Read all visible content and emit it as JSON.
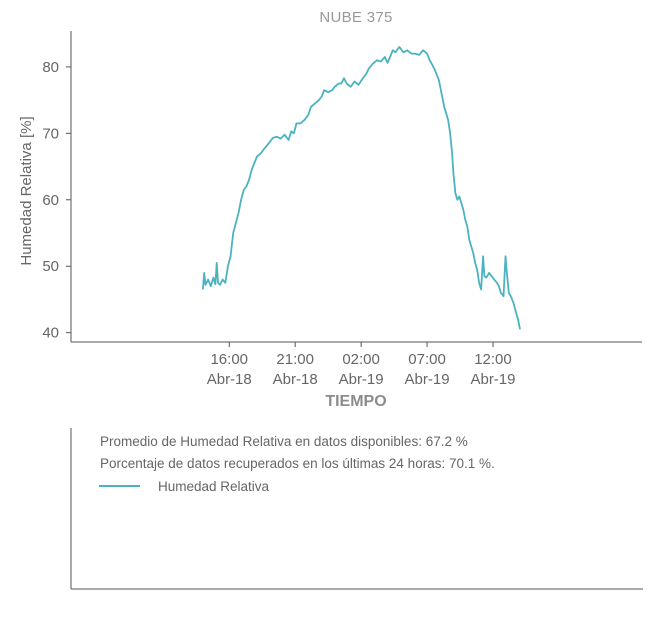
{
  "chart_data": {
    "type": "line",
    "title": "NUBE 375",
    "xlabel": "TIEMPO",
    "ylabel": "Humedad Relativa [%]",
    "ylim": [
      38.6,
      85.4
    ],
    "y_ticks": [
      40,
      50,
      60,
      70,
      80
    ],
    "x_range_hours": [
      -12.0,
      31.3
    ],
    "x_ticks": [
      {
        "hours": 0,
        "time": "16:00",
        "date": "Abr-18"
      },
      {
        "hours": 5,
        "time": "21:00",
        "date": "Abr-18"
      },
      {
        "hours": 10,
        "time": "02:00",
        "date": "Abr-19"
      },
      {
        "hours": 15,
        "time": "07:00",
        "date": "Abr-19"
      },
      {
        "hours": 20,
        "time": "12:00",
        "date": "Abr-19"
      }
    ],
    "grid": false,
    "series": [
      {
        "name": "Humedad Relativa",
        "color": "#4bb3c0",
        "points": [
          [
            -2.0,
            46.5
          ],
          [
            -1.9,
            49.0
          ],
          [
            -1.8,
            47.2
          ],
          [
            -1.6,
            48.0
          ],
          [
            -1.4,
            47.0
          ],
          [
            -1.2,
            48.3
          ],
          [
            -1.05,
            47.3
          ],
          [
            -0.95,
            50.5
          ],
          [
            -0.85,
            47.5
          ],
          [
            -0.7,
            47.2
          ],
          [
            -0.5,
            48.0
          ],
          [
            -0.3,
            47.5
          ],
          [
            -0.1,
            50.0
          ],
          [
            0.1,
            51.5
          ],
          [
            0.3,
            55.0
          ],
          [
            0.5,
            56.5
          ],
          [
            0.7,
            58.0
          ],
          [
            0.9,
            60.0
          ],
          [
            1.1,
            61.5
          ],
          [
            1.3,
            62.0
          ],
          [
            1.5,
            63.0
          ],
          [
            1.7,
            64.5
          ],
          [
            1.9,
            65.5
          ],
          [
            2.1,
            66.5
          ],
          [
            2.4,
            67.0
          ],
          [
            2.7,
            67.8
          ],
          [
            3.0,
            68.5
          ],
          [
            3.3,
            69.3
          ],
          [
            3.6,
            69.5
          ],
          [
            3.9,
            69.2
          ],
          [
            4.2,
            69.8
          ],
          [
            4.5,
            69.0
          ],
          [
            4.7,
            70.3
          ],
          [
            4.9,
            70.0
          ],
          [
            5.1,
            71.5
          ],
          [
            5.4,
            71.5
          ],
          [
            5.7,
            72.0
          ],
          [
            6.0,
            72.8
          ],
          [
            6.2,
            74.0
          ],
          [
            6.5,
            74.5
          ],
          [
            6.8,
            75.0
          ],
          [
            7.0,
            75.5
          ],
          [
            7.2,
            76.5
          ],
          [
            7.5,
            76.2
          ],
          [
            7.8,
            76.5
          ],
          [
            8.0,
            77.0
          ],
          [
            8.3,
            77.5
          ],
          [
            8.5,
            77.5
          ],
          [
            8.7,
            78.3
          ],
          [
            8.9,
            77.5
          ],
          [
            9.2,
            77.0
          ],
          [
            9.5,
            77.8
          ],
          [
            9.8,
            77.3
          ],
          [
            10.1,
            78.2
          ],
          [
            10.4,
            79.0
          ],
          [
            10.6,
            79.8
          ],
          [
            10.9,
            80.5
          ],
          [
            11.2,
            81.0
          ],
          [
            11.5,
            80.8
          ],
          [
            11.8,
            81.5
          ],
          [
            12.0,
            80.6
          ],
          [
            12.2,
            81.5
          ],
          [
            12.4,
            82.5
          ],
          [
            12.6,
            82.2
          ],
          [
            12.9,
            83.0
          ],
          [
            13.2,
            82.2
          ],
          [
            13.5,
            82.5
          ],
          [
            13.8,
            82.0
          ],
          [
            14.1,
            82.0
          ],
          [
            14.4,
            81.8
          ],
          [
            14.7,
            82.5
          ],
          [
            15.0,
            82.0
          ],
          [
            15.2,
            81.0
          ],
          [
            15.4,
            80.3
          ],
          [
            15.6,
            79.5
          ],
          [
            15.9,
            78.0
          ],
          [
            16.1,
            76.0
          ],
          [
            16.3,
            74.0
          ],
          [
            16.45,
            73.0
          ],
          [
            16.6,
            72.0
          ],
          [
            16.75,
            70.0
          ],
          [
            16.9,
            67.0
          ],
          [
            17.0,
            64.0
          ],
          [
            17.15,
            61.0
          ],
          [
            17.3,
            60.0
          ],
          [
            17.45,
            60.5
          ],
          [
            17.6,
            59.5
          ],
          [
            17.75,
            58.5
          ],
          [
            17.9,
            57.0
          ],
          [
            18.05,
            56.0
          ],
          [
            18.2,
            54.0
          ],
          [
            18.35,
            53.0
          ],
          [
            18.5,
            52.0
          ],
          [
            18.65,
            50.5
          ],
          [
            18.8,
            49.5
          ],
          [
            18.95,
            47.5
          ],
          [
            19.1,
            46.5
          ],
          [
            19.25,
            51.5
          ],
          [
            19.35,
            48.5
          ],
          [
            19.5,
            48.3
          ],
          [
            19.7,
            49.0
          ],
          [
            19.9,
            48.5
          ],
          [
            20.1,
            48.0
          ],
          [
            20.3,
            47.5
          ],
          [
            20.45,
            47.0
          ],
          [
            20.6,
            46.0
          ],
          [
            20.8,
            45.5
          ],
          [
            20.95,
            51.5
          ],
          [
            21.05,
            49.0
          ],
          [
            21.2,
            46.0
          ],
          [
            21.35,
            45.5
          ],
          [
            21.55,
            44.5
          ],
          [
            21.75,
            43.0
          ],
          [
            21.9,
            42.0
          ],
          [
            22.05,
            40.5
          ]
        ]
      }
    ],
    "stats": {
      "average_line": "Promedio de Humedad Relativa en datos disponibles: 67.2 %",
      "recovery_line": "Porcentaje de datos recuperados en los últimas 24 horas: 70.1 %."
    }
  }
}
